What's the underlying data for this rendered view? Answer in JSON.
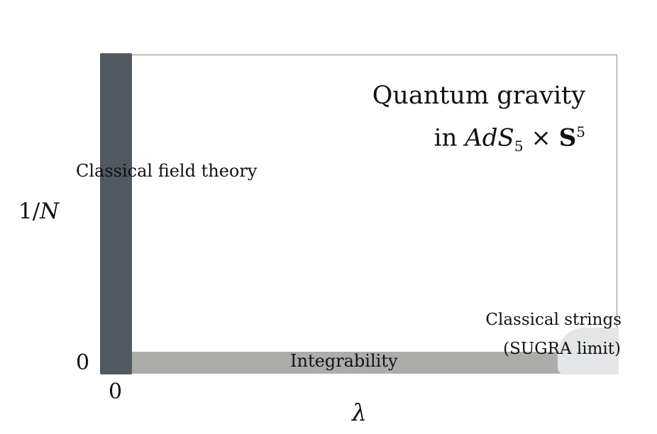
{
  "diagram": {
    "title_line1": "Quantum gravity",
    "title_line2": {
      "prefix": "in ",
      "ads": "AdS",
      "ads_sub": "5",
      "times": " × ",
      "sphere": "S",
      "sphere_sup": "5"
    },
    "regions": {
      "classical_field_theory": "Classical field theory",
      "integrability": "Integrability",
      "classical_strings_line1": "Classical strings",
      "classical_strings_line2": "(SUGRA limit)"
    },
    "y_axis": {
      "label_numerator": "1/",
      "label_symbol": "N",
      "zero_tick": "0"
    },
    "x_axis": {
      "label": "λ",
      "zero_tick": "0"
    },
    "colors": {
      "classical_field_theory_band": "#525860",
      "integrability_band": "#acadab",
      "classical_strings_region": "#e4e5e6",
      "frame_border": "#8a8a8a"
    }
  }
}
